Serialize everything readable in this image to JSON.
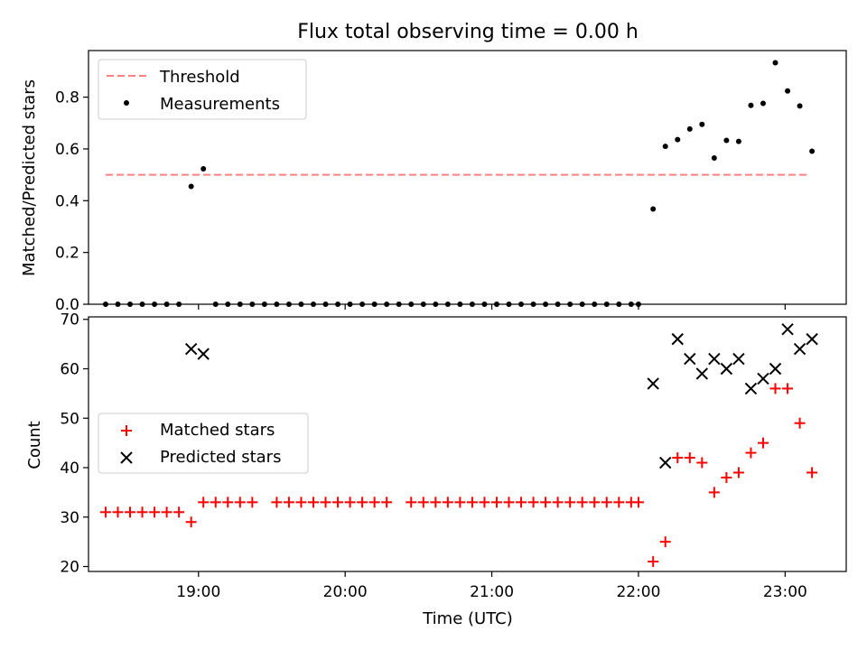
{
  "chart_data": [
    {
      "type": "scatter",
      "title": "Flux total observing time = 0.00 h",
      "xlabel": "",
      "ylabel": "Matched/Predicted stars",
      "xlim": [
        "18:15",
        "23:25"
      ],
      "ylim": [
        0,
        0.98
      ],
      "yticks": [
        "0.0",
        "0.2",
        "0.4",
        "0.6",
        "0.8"
      ],
      "ytick_values": [
        0,
        0.2,
        0.4,
        0.6,
        0.8
      ],
      "xtick_times": [
        "19:00",
        "20:00",
        "21:00",
        "22:00",
        "23:00"
      ],
      "legend": {
        "position": "upper-left",
        "entries": [
          "Threshold",
          "Measurements"
        ]
      },
      "threshold": {
        "name": "Threshold",
        "value": 0.5,
        "x_start": "18:22",
        "x_end": "23:09",
        "color": "#ff8080",
        "style": "dashed"
      },
      "series": [
        {
          "name": "Measurements",
          "color": "#000000",
          "marker": "dot",
          "points": [
            [
              "18:22",
              0
            ],
            [
              "18:27",
              0
            ],
            [
              "18:32",
              0
            ],
            [
              "18:37",
              0
            ],
            [
              "18:42",
              0
            ],
            [
              "18:47",
              0
            ],
            [
              "18:52",
              0
            ],
            [
              "18:57",
              0.455
            ],
            [
              "19:02",
              0.523
            ],
            [
              "19:07",
              0
            ],
            [
              "19:12",
              0
            ],
            [
              "19:17",
              0
            ],
            [
              "19:22",
              0
            ],
            [
              "19:27",
              0
            ],
            [
              "19:32",
              0
            ],
            [
              "19:37",
              0
            ],
            [
              "19:42",
              0
            ],
            [
              "19:47",
              0
            ],
            [
              "19:52",
              0
            ],
            [
              "19:57",
              0
            ],
            [
              "20:02",
              0
            ],
            [
              "20:07",
              0
            ],
            [
              "20:12",
              0
            ],
            [
              "20:17",
              0
            ],
            [
              "20:22",
              0
            ],
            [
              "20:27",
              0
            ],
            [
              "20:32",
              0
            ],
            [
              "20:37",
              0
            ],
            [
              "20:42",
              0
            ],
            [
              "20:47",
              0
            ],
            [
              "20:52",
              0
            ],
            [
              "20:57",
              0
            ],
            [
              "21:02",
              0
            ],
            [
              "21:07",
              0
            ],
            [
              "21:12",
              0
            ],
            [
              "21:17",
              0
            ],
            [
              "21:22",
              0
            ],
            [
              "21:27",
              0
            ],
            [
              "21:32",
              0
            ],
            [
              "21:37",
              0
            ],
            [
              "21:42",
              0
            ],
            [
              "21:47",
              0
            ],
            [
              "21:52",
              0
            ],
            [
              "21:57",
              0
            ],
            [
              "22:00",
              0
            ],
            [
              "22:06",
              0.368
            ],
            [
              "22:11",
              0.61
            ],
            [
              "22:16",
              0.636
            ],
            [
              "22:21",
              0.677
            ],
            [
              "22:26",
              0.695
            ],
            [
              "22:31",
              0.565
            ],
            [
              "22:36",
              0.633
            ],
            [
              "22:41",
              0.629
            ],
            [
              "22:46",
              0.768
            ],
            [
              "22:51",
              0.776
            ],
            [
              "22:56",
              0.933
            ],
            [
              "23:01",
              0.824
            ],
            [
              "23:06",
              0.766
            ],
            [
              "23:11",
              0.591
            ]
          ]
        }
      ]
    },
    {
      "type": "scatter",
      "title": "",
      "xlabel": "Time (UTC)",
      "ylabel": "Count",
      "xlim": [
        "18:15",
        "23:25"
      ],
      "ylim": [
        19,
        70.5
      ],
      "yticks": [
        "20",
        "30",
        "40",
        "50",
        "60",
        "70"
      ],
      "ytick_values": [
        20,
        30,
        40,
        50,
        60,
        70
      ],
      "xticks": [
        "19:00",
        "20:00",
        "21:00",
        "22:00",
        "23:00"
      ],
      "legend": {
        "position": "center-left",
        "entries": [
          "Matched stars",
          "Predicted stars"
        ]
      },
      "series": [
        {
          "name": "Matched stars",
          "color": "#ff0000",
          "marker": "plus",
          "points": [
            [
              "18:22",
              31
            ],
            [
              "18:27",
              31
            ],
            [
              "18:32",
              31
            ],
            [
              "18:37",
              31
            ],
            [
              "18:42",
              31
            ],
            [
              "18:47",
              31
            ],
            [
              "18:52",
              31
            ],
            [
              "18:57",
              29
            ],
            [
              "19:02",
              33
            ],
            [
              "19:07",
              33
            ],
            [
              "19:12",
              33
            ],
            [
              "19:17",
              33
            ],
            [
              "19:22",
              33
            ],
            [
              "19:32",
              33
            ],
            [
              "19:37",
              33
            ],
            [
              "19:42",
              33
            ],
            [
              "19:47",
              33
            ],
            [
              "19:52",
              33
            ],
            [
              "19:57",
              33
            ],
            [
              "20:02",
              33
            ],
            [
              "20:07",
              33
            ],
            [
              "20:12",
              33
            ],
            [
              "20:17",
              33
            ],
            [
              "20:27",
              33
            ],
            [
              "20:32",
              33
            ],
            [
              "20:37",
              33
            ],
            [
              "20:42",
              33
            ],
            [
              "20:47",
              33
            ],
            [
              "20:52",
              33
            ],
            [
              "20:57",
              33
            ],
            [
              "21:02",
              33
            ],
            [
              "21:07",
              33
            ],
            [
              "21:12",
              33
            ],
            [
              "21:17",
              33
            ],
            [
              "21:22",
              33
            ],
            [
              "21:27",
              33
            ],
            [
              "21:32",
              33
            ],
            [
              "21:37",
              33
            ],
            [
              "21:42",
              33
            ],
            [
              "21:47",
              33
            ],
            [
              "21:52",
              33
            ],
            [
              "21:57",
              33
            ],
            [
              "22:00",
              33
            ],
            [
              "22:06",
              21
            ],
            [
              "22:11",
              25
            ],
            [
              "22:16",
              42
            ],
            [
              "22:21",
              42
            ],
            [
              "22:26",
              41
            ],
            [
              "22:31",
              35
            ],
            [
              "22:36",
              38
            ],
            [
              "22:41",
              39
            ],
            [
              "22:46",
              43
            ],
            [
              "22:51",
              45
            ],
            [
              "22:56",
              56
            ],
            [
              "23:01",
              56
            ],
            [
              "23:06",
              49
            ],
            [
              "23:11",
              39
            ]
          ]
        },
        {
          "name": "Predicted stars",
          "color": "#000000",
          "marker": "x",
          "points": [
            [
              "18:57",
              64
            ],
            [
              "19:02",
              63
            ],
            [
              "22:06",
              57
            ],
            [
              "22:11",
              41
            ],
            [
              "22:16",
              66
            ],
            [
              "22:21",
              62
            ],
            [
              "22:26",
              59
            ],
            [
              "22:31",
              62
            ],
            [
              "22:36",
              60
            ],
            [
              "22:41",
              62
            ],
            [
              "22:46",
              56
            ],
            [
              "22:51",
              58
            ],
            [
              "22:56",
              60
            ],
            [
              "23:01",
              68
            ],
            [
              "23:06",
              64
            ],
            [
              "23:11",
              66
            ]
          ]
        }
      ]
    }
  ]
}
